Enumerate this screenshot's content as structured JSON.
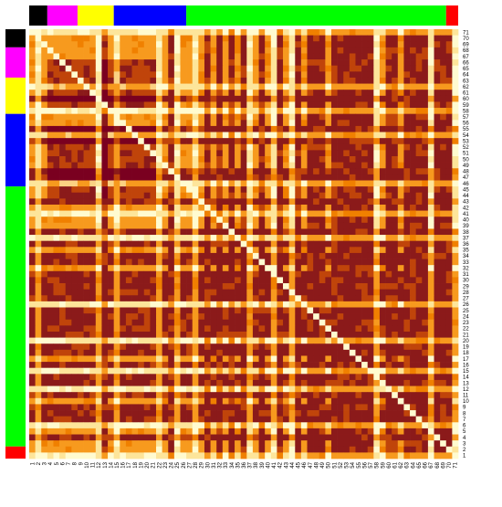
{
  "chart_data": {
    "type": "heatmap",
    "title": "",
    "xlabel": "",
    "ylabel": "",
    "n": 71,
    "x_labels": [
      "1",
      "2",
      "3",
      "4",
      "5",
      "6",
      "7",
      "8",
      "9",
      "10",
      "11",
      "12",
      "13",
      "14",
      "15",
      "16",
      "17",
      "18",
      "19",
      "20",
      "21",
      "22",
      "23",
      "24",
      "25",
      "26",
      "27",
      "28",
      "29",
      "30",
      "31",
      "32",
      "33",
      "34",
      "35",
      "36",
      "37",
      "38",
      "39",
      "40",
      "41",
      "42",
      "43",
      "44",
      "45",
      "46",
      "47",
      "48",
      "49",
      "50",
      "51",
      "52",
      "53",
      "54",
      "55",
      "56",
      "57",
      "58",
      "59",
      "60",
      "61",
      "62",
      "63",
      "64",
      "65",
      "66",
      "67",
      "68",
      "69",
      "70",
      "71"
    ],
    "y_labels_bottom_to_top": [
      "1",
      "2",
      "3",
      "4",
      "5",
      "6",
      "7",
      "8",
      "9",
      "10",
      "11",
      "12",
      "13",
      "14",
      "15",
      "16",
      "17",
      "18",
      "19",
      "20",
      "21",
      "22",
      "23",
      "24",
      "25",
      "26",
      "27",
      "28",
      "29",
      "30",
      "31",
      "32",
      "33",
      "34",
      "35",
      "36",
      "37",
      "38",
      "39",
      "40",
      "41",
      "42",
      "43",
      "44",
      "45",
      "46",
      "47",
      "48",
      "49",
      "50",
      "51",
      "52",
      "53",
      "54",
      "55",
      "56",
      "57",
      "58",
      "59",
      "60",
      "61",
      "62",
      "63",
      "64",
      "65",
      "66",
      "67",
      "68",
      "69",
      "70",
      "71"
    ],
    "level_colors": [
      "#fffbd0",
      "#fde59a",
      "#fbd282",
      "#f79a1e",
      "#f08000",
      "#c0440a",
      "#8b1a1a",
      "#7a0020"
    ],
    "groups": [
      {
        "color": "#000000",
        "size": 3
      },
      {
        "color": "#ff00ff",
        "size": 5
      },
      {
        "color": "#ffff00",
        "size": 6
      },
      {
        "color": "#0000ff",
        "size": 12
      },
      {
        "color": "#00ff00",
        "size": 43
      },
      {
        "color": "#ff0000",
        "size": 2
      }
    ],
    "cluster_columns": [
      3,
      4,
      5,
      6,
      7,
      8,
      9,
      10,
      12,
      13,
      14,
      15,
      16,
      17,
      18,
      19,
      20
    ],
    "cluster_rows_from_top": [
      5,
      6,
      7,
      8,
      9,
      10,
      11,
      12,
      16,
      17,
      18,
      19,
      20,
      21,
      22,
      23,
      24,
      25,
      26,
      27
    ],
    "dark_columns": [
      12,
      23,
      29,
      31,
      33,
      35,
      38,
      41,
      44,
      46,
      47,
      48,
      50,
      51,
      52,
      53,
      54,
      55,
      56,
      59,
      60,
      62,
      63,
      64,
      65,
      67,
      68,
      69
    ],
    "dark_rows_from_top": [
      11,
      16,
      18,
      23,
      24,
      28,
      33,
      35,
      37,
      38,
      40,
      41,
      42,
      43,
      44,
      46,
      47,
      48,
      49,
      50,
      52,
      53,
      55,
      57,
      58,
      60,
      62,
      63,
      64,
      67
    ],
    "light_columns": [
      1,
      11,
      14,
      21,
      24,
      27,
      36,
      40,
      43,
      57,
      66,
      70
    ],
    "light_rows_from_top": [
      0,
      9,
      13,
      17,
      25,
      30,
      34,
      45,
      51,
      56,
      59,
      65,
      70
    ],
    "grid": false,
    "legend": "none"
  }
}
